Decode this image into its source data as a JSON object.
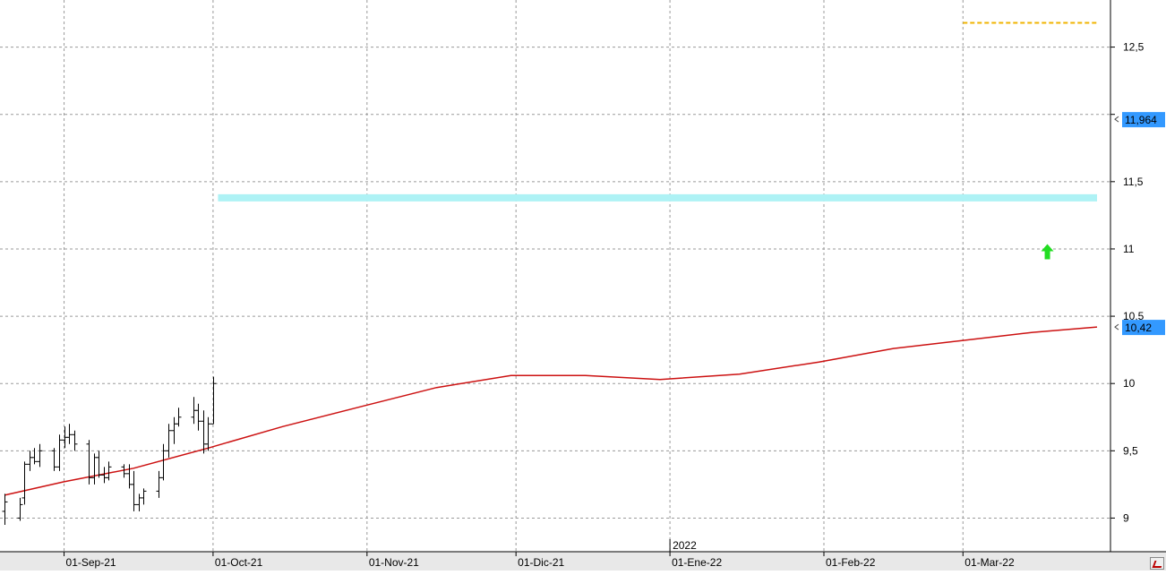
{
  "chart_data": {
    "type": "bar",
    "bar_style": "OHLC",
    "title": "",
    "xlabel": "",
    "ylabel": "",
    "ylim": [
      8.75,
      12.85
    ],
    "x_range": [
      "2021-08-20",
      "2022-03-28"
    ],
    "grid": true,
    "y_axis_position": "right",
    "yticks": [
      {
        "value": 9,
        "label": "9"
      },
      {
        "value": 9.5,
        "label": "9,5"
      },
      {
        "value": 10,
        "label": "10"
      },
      {
        "value": 10.5,
        "label": "10,5"
      },
      {
        "value": 11,
        "label": "11"
      },
      {
        "value": 11.5,
        "label": "11,5"
      },
      {
        "value": 12,
        "label": ""
      },
      {
        "value": 12.5,
        "label": "12,5"
      }
    ],
    "xticks": [
      {
        "date": "2021-09-01",
        "label": "01-Sep-21"
      },
      {
        "date": "2021-10-01",
        "label": "01-Oct-21"
      },
      {
        "date": "2021-11-01",
        "label": "01-Nov-21"
      },
      {
        "date": "2021-12-01",
        "label": "01-Dic-21"
      },
      {
        "date": "2022-01-01",
        "label": "01-Ene-22"
      },
      {
        "date": "2022-02-01",
        "label": "01-Feb-22"
      },
      {
        "date": "2022-03-01",
        "label": "01-Mar-22"
      }
    ],
    "year_marker": {
      "date": "2022-01-01",
      "label": "2022"
    },
    "price_badges": [
      {
        "value": 11.964,
        "label": "11,964",
        "color": "#3399ff"
      },
      {
        "value": 10.42,
        "label": "10,42",
        "color": "#3399ff"
      }
    ],
    "colors": {
      "bars": "#000000",
      "moving_average": "#cc1111",
      "support_line": "#aef2f5",
      "resistance_line": "#f0b400",
      "signal_arrow": "#22dd22",
      "grid": "#9a9a9a"
    },
    "support_line": {
      "value": 11.38,
      "from": "2021-10-02",
      "to": "2022-03-28"
    },
    "resistance_line": {
      "value": 12.68,
      "from": "2022-03-01",
      "to": "2022-03-28"
    },
    "signal_arrow": {
      "date": "2022-03-18",
      "value": 10.97,
      "direction": "up"
    },
    "moving_average": [
      {
        "date": "2021-08-20",
        "value": 9.17
      },
      {
        "date": "2021-09-01",
        "value": 9.27
      },
      {
        "date": "2021-09-15",
        "value": 9.37
      },
      {
        "date": "2021-09-30",
        "value": 9.52
      },
      {
        "date": "2021-10-15",
        "value": 9.68
      },
      {
        "date": "2021-10-31",
        "value": 9.83
      },
      {
        "date": "2021-11-15",
        "value": 9.97
      },
      {
        "date": "2021-11-30",
        "value": 10.06
      },
      {
        "date": "2021-12-15",
        "value": 10.06
      },
      {
        "date": "2021-12-30",
        "value": 10.03
      },
      {
        "date": "2022-01-15",
        "value": 10.07
      },
      {
        "date": "2022-01-31",
        "value": 10.16
      },
      {
        "date": "2022-02-15",
        "value": 10.26
      },
      {
        "date": "2022-03-01",
        "value": 10.32
      },
      {
        "date": "2022-03-15",
        "value": 10.38
      },
      {
        "date": "2022-03-28",
        "value": 10.42
      }
    ],
    "series": [
      {
        "values": [
          {
            "date": "2021-08-20",
            "open": 9.05,
            "high": 9.18,
            "low": 8.95,
            "close": 9.12
          },
          {
            "date": "2021-08-23",
            "open": 9.0,
            "high": 9.15,
            "low": 8.98,
            "close": 9.1
          },
          {
            "date": "2021-08-24",
            "open": 9.15,
            "high": 9.42,
            "low": 9.1,
            "close": 9.4
          },
          {
            "date": "2021-08-25",
            "open": 9.4,
            "high": 9.5,
            "low": 9.35,
            "close": 9.45
          },
          {
            "date": "2021-08-26",
            "open": 9.45,
            "high": 9.52,
            "low": 9.4,
            "close": 9.42
          },
          {
            "date": "2021-08-27",
            "open": 9.42,
            "high": 9.55,
            "low": 9.38,
            "close": 9.5
          },
          {
            "date": "2021-08-30",
            "open": 9.5,
            "high": 9.52,
            "low": 9.35,
            "close": 9.38
          },
          {
            "date": "2021-08-31",
            "open": 9.38,
            "high": 9.62,
            "low": 9.35,
            "close": 9.58
          },
          {
            "date": "2021-09-01",
            "open": 9.58,
            "high": 9.68,
            "low": 9.52,
            "close": 9.6
          },
          {
            "date": "2021-09-02",
            "open": 9.6,
            "high": 9.7,
            "low": 9.55,
            "close": 9.62
          },
          {
            "date": "2021-09-03",
            "open": 9.62,
            "high": 9.65,
            "low": 9.5,
            "close": 9.55
          },
          {
            "date": "2021-09-06",
            "open": 9.55,
            "high": 9.58,
            "low": 9.25,
            "close": 9.3
          },
          {
            "date": "2021-09-07",
            "open": 9.3,
            "high": 9.48,
            "low": 9.25,
            "close": 9.45
          },
          {
            "date": "2021-09-08",
            "open": 9.45,
            "high": 9.5,
            "low": 9.3,
            "close": 9.32
          },
          {
            "date": "2021-09-09",
            "open": 9.32,
            "high": 9.38,
            "low": 9.26,
            "close": 9.3
          },
          {
            "date": "2021-09-10",
            "open": 9.3,
            "high": 9.42,
            "low": 9.28,
            "close": 9.38
          },
          {
            "date": "2021-09-13",
            "open": 9.38,
            "high": 9.4,
            "low": 9.3,
            "close": 9.33
          },
          {
            "date": "2021-09-14",
            "open": 9.33,
            "high": 9.4,
            "low": 9.22,
            "close": 9.25
          },
          {
            "date": "2021-09-15",
            "open": 9.25,
            "high": 9.35,
            "low": 9.05,
            "close": 9.1
          },
          {
            "date": "2021-09-16",
            "open": 9.1,
            "high": 9.18,
            "low": 9.05,
            "close": 9.15
          },
          {
            "date": "2021-09-17",
            "open": 9.15,
            "high": 9.22,
            "low": 9.1,
            "close": 9.2
          },
          {
            "date": "2021-09-20",
            "open": 9.2,
            "high": 9.35,
            "low": 9.15,
            "close": 9.3
          },
          {
            "date": "2021-09-21",
            "open": 9.3,
            "high": 9.55,
            "low": 9.28,
            "close": 9.5
          },
          {
            "date": "2021-09-22",
            "open": 9.5,
            "high": 9.7,
            "low": 9.45,
            "close": 9.65
          },
          {
            "date": "2021-09-23",
            "open": 9.65,
            "high": 9.75,
            "low": 9.55,
            "close": 9.7
          },
          {
            "date": "2021-09-24",
            "open": 9.7,
            "high": 9.82,
            "low": 9.68,
            "close": 9.75
          },
          {
            "date": "2021-09-27",
            "open": 9.75,
            "high": 9.9,
            "low": 9.7,
            "close": 9.8
          },
          {
            "date": "2021-09-28",
            "open": 9.8,
            "high": 9.85,
            "low": 9.65,
            "close": 9.72
          },
          {
            "date": "2021-09-29",
            "open": 9.72,
            "high": 9.8,
            "low": 9.48,
            "close": 9.55
          },
          {
            "date": "2021-09-30",
            "open": 9.55,
            "high": 9.75,
            "low": 9.5,
            "close": 9.7
          },
          {
            "date": "2021-10-01",
            "open": 9.7,
            "high": 10.05,
            "low": 9.7,
            "close": 10.0
          }
        ]
      }
    ]
  }
}
